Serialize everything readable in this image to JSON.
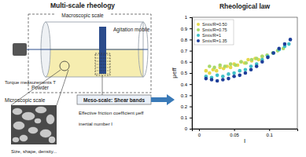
{
  "diagram": {
    "title": "Multi-scale rheology",
    "macroscopic_label": "Macroscopic scale",
    "agitation_label": "Agitation mobile",
    "torque_label": "Torque measurements T",
    "powder_label": "Powder",
    "microscopic_label": "Microscopic scale",
    "microscopic_caption": "Size, shape, density...",
    "meso_label": "Meso-scale: Shear bands",
    "mueff_label": "Effective friction coefficient μeff",
    "inertial_label": "inertial number I"
  },
  "chart_data": {
    "type": "scatter",
    "title": "Rheological law",
    "x_label": "I",
    "y_label": "μeff",
    "xlim": [
      -0.01,
      0.14
    ],
    "xticks": [
      0,
      0.05,
      0.1
    ],
    "ylim": [
      0,
      1
    ],
    "yticks": [
      0,
      0.1,
      0.2,
      0.3,
      0.4,
      0.5,
      0.6,
      0.7,
      0.8,
      0.9,
      1
    ],
    "legend": "upper left",
    "marker": "circle",
    "series": [
      {
        "name": "Smix/R=0.50",
        "color": "#e6d84a",
        "x": [
          0.01,
          0.015,
          0.02,
          0.025,
          0.03,
          0.035,
          0.04,
          0.045,
          0.05,
          0.055,
          0.06,
          0.065,
          0.07,
          0.075,
          0.08,
          0.085,
          0.09
        ],
        "values": [
          0.52,
          0.5,
          0.53,
          0.52,
          0.55,
          0.54,
          0.56,
          0.55,
          0.58,
          0.57,
          0.6,
          0.59,
          0.62,
          0.61,
          0.63,
          0.62,
          0.65
        ]
      },
      {
        "name": "Smix/R=0.75",
        "color": "#a8d86a",
        "x": [
          0.015,
          0.022,
          0.03,
          0.037,
          0.045,
          0.052,
          0.06,
          0.067,
          0.075,
          0.082,
          0.09,
          0.097,
          0.105,
          0.112,
          0.12
        ],
        "values": [
          0.56,
          0.55,
          0.57,
          0.56,
          0.58,
          0.57,
          0.6,
          0.59,
          0.62,
          0.63,
          0.65,
          0.66,
          0.68,
          0.7,
          0.72
        ]
      },
      {
        "name": "Smix/R=1",
        "color": "#3fc0c8",
        "x": [
          0.01,
          0.018,
          0.026,
          0.034,
          0.042,
          0.05,
          0.058,
          0.066,
          0.074,
          0.082,
          0.09,
          0.098,
          0.106,
          0.114,
          0.122,
          0.128
        ],
        "values": [
          0.47,
          0.46,
          0.48,
          0.47,
          0.49,
          0.5,
          0.52,
          0.53,
          0.56,
          0.58,
          0.62,
          0.65,
          0.68,
          0.71,
          0.74,
          0.76
        ]
      },
      {
        "name": "Smix/R=1.35",
        "color": "#1f3f9a",
        "x": [
          0.01,
          0.018,
          0.026,
          0.034,
          0.042,
          0.05,
          0.058,
          0.066,
          0.074,
          0.082,
          0.09,
          0.098,
          0.106,
          0.114,
          0.122,
          0.13
        ],
        "values": [
          0.45,
          0.44,
          0.43,
          0.44,
          0.45,
          0.47,
          0.48,
          0.5,
          0.53,
          0.56,
          0.6,
          0.64,
          0.68,
          0.72,
          0.76,
          0.8
        ]
      }
    ]
  }
}
